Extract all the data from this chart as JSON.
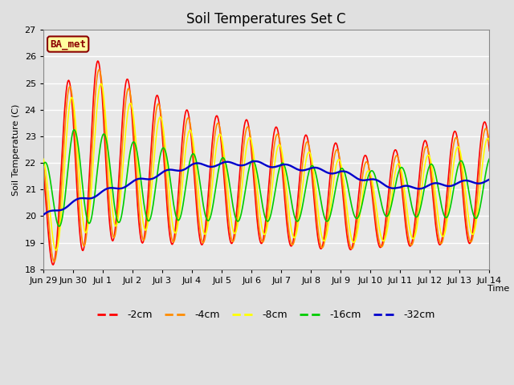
{
  "title": "Soil Temperatures Set C",
  "xlabel": "Time",
  "ylabel": "Soil Temperature (C)",
  "ylim": [
    18.0,
    27.0
  ],
  "yticks": [
    18.0,
    19.0,
    20.0,
    21.0,
    22.0,
    23.0,
    24.0,
    25.0,
    26.0,
    27.0
  ],
  "xtick_labels": [
    "Jun 29",
    "Jun 30",
    "Jul 1",
    "Jul 2",
    "Jul 3",
    "Jul 4",
    "Jul 5",
    "Jul 6",
    "Jul 7",
    "Jul 8",
    "Jul 9",
    "Jul 10",
    "Jul 11",
    "Jul 12",
    "Jul 13",
    "Jul 14"
  ],
  "series_colors": {
    "-2cm": "#ff0000",
    "-4cm": "#ff8c00",
    "-8cm": "#ffff00",
    "-16cm": "#00cc00",
    "-32cm": "#0000cc"
  },
  "series_linewidth": 1.2,
  "annotation_text": "BA_met",
  "annotation_color": "#8b0000",
  "annotation_bg": "#ffffa0",
  "fig_bg_color": "#e0e0e0",
  "plot_bg_color": "#e8e8e8",
  "grid_color": "#ffffff",
  "title_fontsize": 12,
  "axis_fontsize": 8,
  "legend_fontsize": 9
}
